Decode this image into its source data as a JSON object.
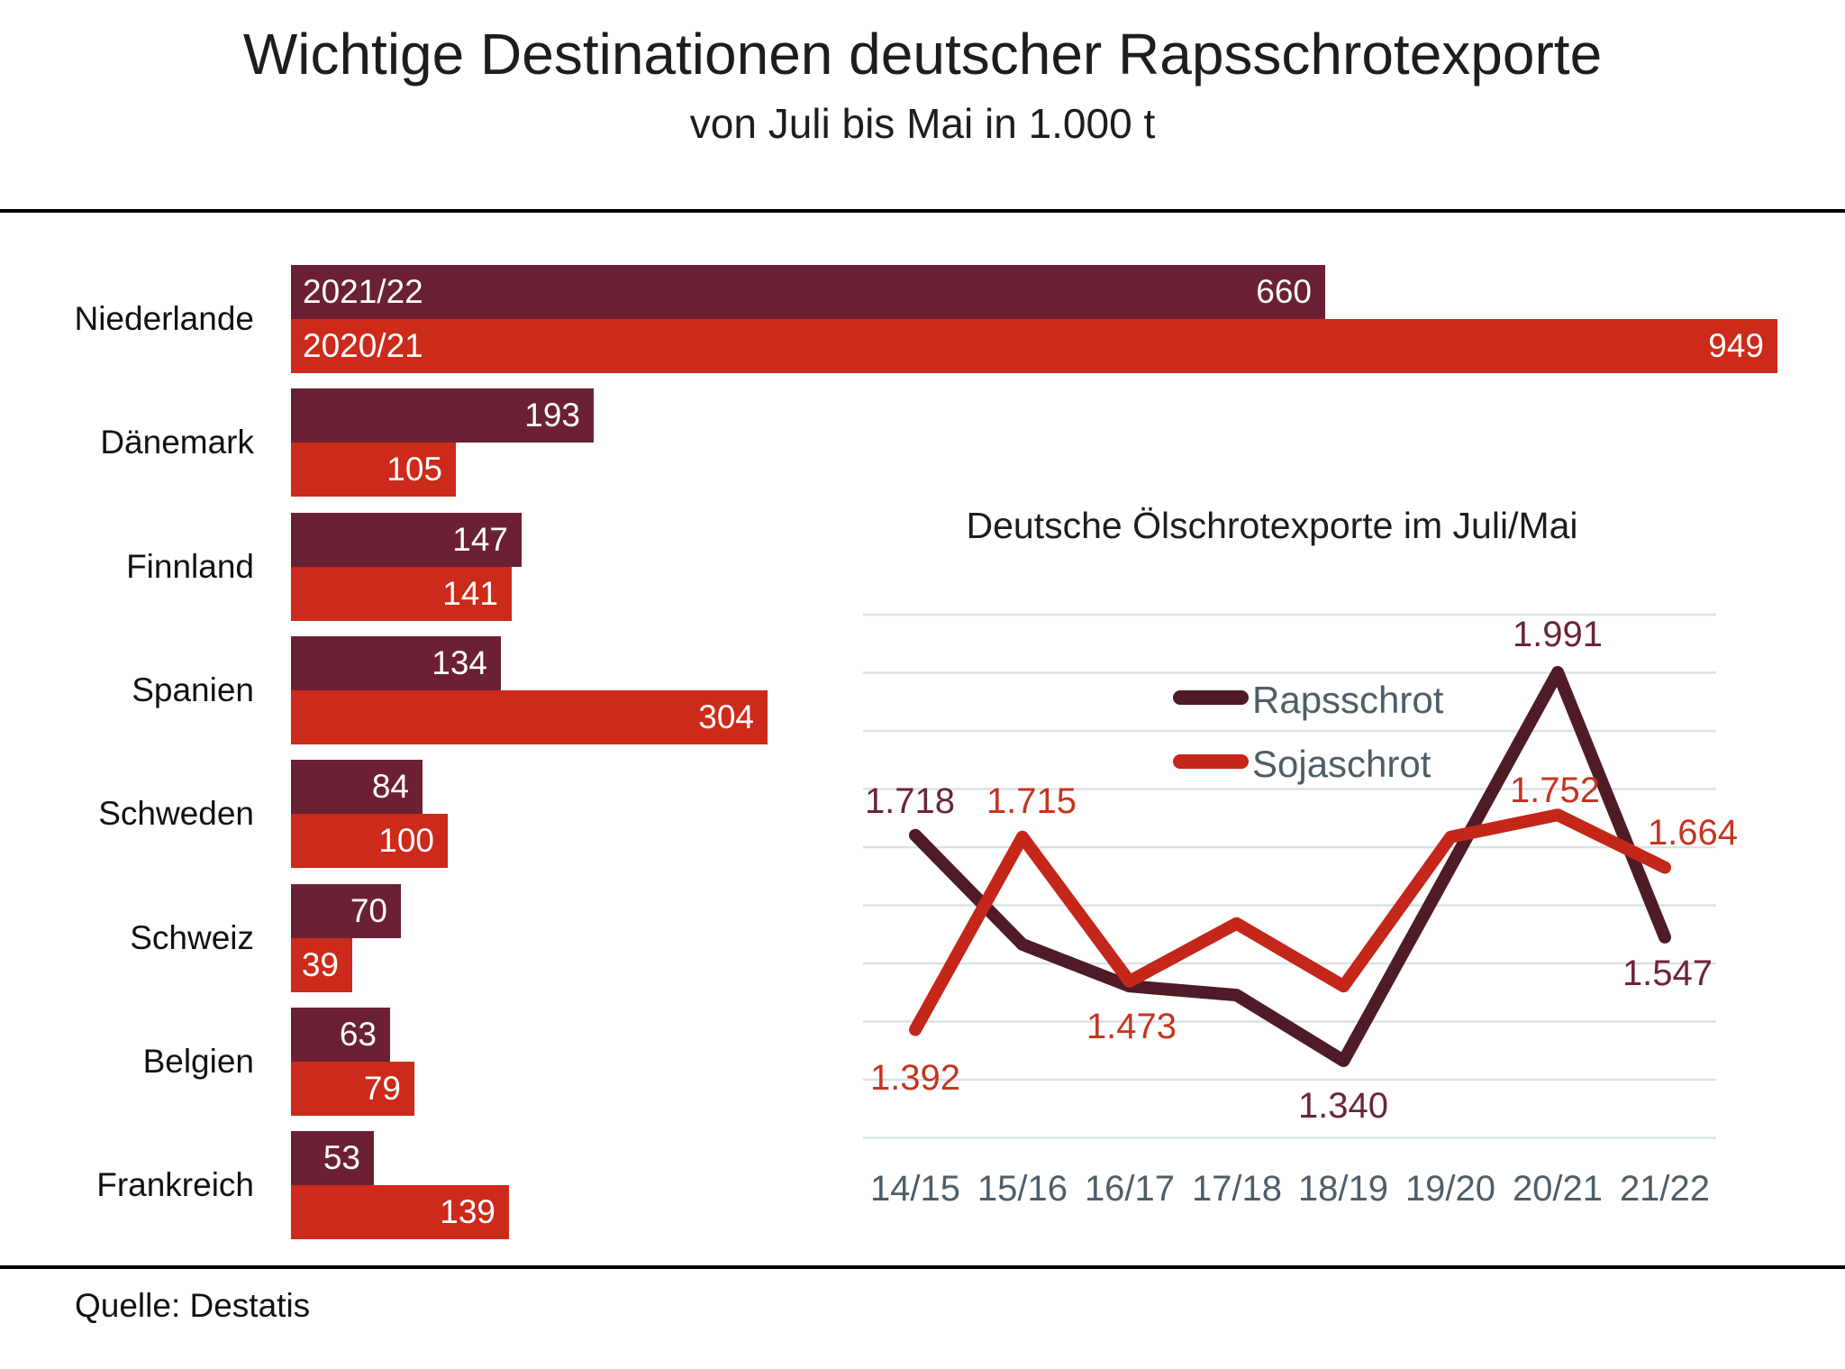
{
  "header": {
    "title": "Wichtige Destinationen deutscher Rapsschrotexporte",
    "subtitle": "von Juli bis Mai in 1.000 t"
  },
  "source": "Quelle: Destatis",
  "colors": {
    "bar_dark": "#6B2133",
    "bar_red": "#CC2A1A",
    "line_dark": "#4E1B26",
    "line_red": "#C5261A",
    "label_dark": "#6B2536",
    "label_red": "#C6341F",
    "axis_text": "#4D5E69",
    "gridline": "#DBE2E5",
    "heading_text": "#1D1D1D",
    "bar_value_text": "#FFFFFF"
  },
  "chart_data": [
    {
      "type": "bar",
      "orientation": "horizontal",
      "title": "Wichtige Destinationen deutscher Rapsschrotexporte",
      "subtitle": "von Juli bis Mai in 1.000 t",
      "unit": "1.000 t",
      "categories": [
        "Niederlande",
        "Dänemark",
        "Finnland",
        "Spanien",
        "Schweden",
        "Schweiz",
        "Belgien",
        "Frankreich"
      ],
      "series": [
        {
          "name": "2021/22",
          "color": "#6B2133",
          "values": [
            660,
            193,
            147,
            134,
            84,
            70,
            63,
            53
          ]
        },
        {
          "name": "2020/21",
          "color": "#CC2A1A",
          "values": [
            949,
            105,
            141,
            304,
            100,
            39,
            79,
            139
          ]
        }
      ],
      "xlim": [
        0,
        949
      ],
      "value_labels": "inside-right",
      "series_name_labels": "inside-left-of-first-category-only"
    },
    {
      "type": "line",
      "title": "Deutsche Ölschrotexporte im Juli/Mai",
      "categories": [
        "14/15",
        "15/16",
        "16/17",
        "17/18",
        "18/19",
        "19/20",
        "20/21",
        "21/22"
      ],
      "series": [
        {
          "name": "Rapsschrot",
          "color": "#4E1B26",
          "label_color": "#6B2536",
          "values": [
            1718,
            1535,
            1465,
            1450,
            1340,
            1665,
            1991,
            1547
          ],
          "labels": [
            "1.718",
            null,
            null,
            null,
            "1.340",
            null,
            "1.991",
            "1.547"
          ]
        },
        {
          "name": "Sojaschrot",
          "color": "#C5261A",
          "label_color": "#C6341F",
          "values": [
            1392,
            1715,
            1473,
            1570,
            1465,
            1715,
            1752,
            1664
          ],
          "labels": [
            "1.392",
            "1.715",
            "1.473",
            null,
            null,
            null,
            "1.752",
            "1.664"
          ]
        }
      ],
      "note": "values without labels are estimated from pixel positions",
      "ylim": [
        1210,
        2090
      ],
      "grid": "horizontal",
      "gridline_count": 10,
      "legend_position": "inside-top-center"
    }
  ]
}
